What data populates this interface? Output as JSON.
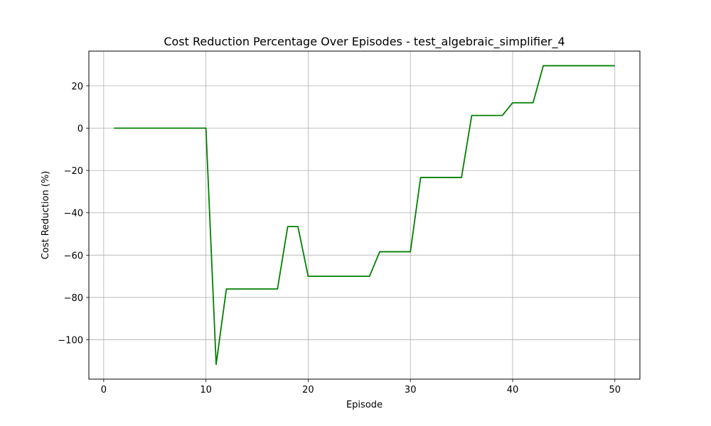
{
  "chart_data": {
    "type": "line",
    "title": "Cost Reduction Percentage Over Episodes - test_algebraic_simplifier_4",
    "xlabel": "Episode",
    "ylabel": "Cost Reduction (%)",
    "xlim": [
      -1.45,
      52.45
    ],
    "ylim": [
      -118.6,
      36.4
    ],
    "xticks": [
      0,
      10,
      20,
      30,
      40,
      50
    ],
    "yticks": [
      -100,
      -80,
      -60,
      -40,
      -20,
      0,
      20
    ],
    "grid": true,
    "series": [
      {
        "color": "#008000",
        "x": [
          1,
          2,
          3,
          4,
          5,
          6,
          7,
          8,
          9,
          10,
          11,
          12,
          13,
          14,
          15,
          16,
          17,
          18,
          19,
          20,
          21,
          22,
          23,
          24,
          25,
          26,
          27,
          28,
          29,
          30,
          31,
          32,
          33,
          34,
          35,
          36,
          37,
          38,
          39,
          40,
          41,
          42,
          43,
          44,
          45,
          46,
          47,
          48,
          49,
          50
        ],
        "y": [
          0,
          0,
          0,
          0,
          0,
          0,
          0,
          0,
          0,
          0,
          -111.6,
          -76,
          -76,
          -76,
          -76,
          -76,
          -76,
          -46.5,
          -46.5,
          -70,
          -70,
          -70,
          -70,
          -70,
          -70,
          -70,
          -58.4,
          -58.4,
          -58.4,
          -58.4,
          -23.3,
          -23.3,
          -23.3,
          -23.3,
          -23.3,
          6,
          6,
          6,
          6,
          12,
          12,
          12,
          29.5,
          29.5,
          29.5,
          29.5,
          29.5,
          29.5,
          29.5,
          29.5
        ]
      }
    ]
  }
}
